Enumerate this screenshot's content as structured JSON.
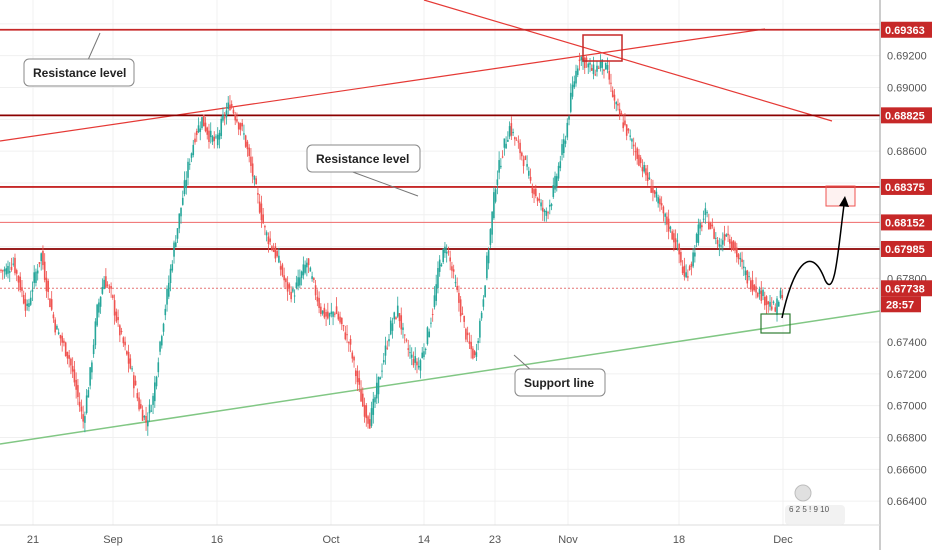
{
  "chart_data": {
    "type": "candlestick",
    "price_axis": {
      "range": [
        0.6625,
        0.6955
      ],
      "ticks": [
        "0.69200",
        "0.69000",
        "0.68600",
        "0.68200",
        "0.67800",
        "0.67400",
        "0.67200",
        "0.67000",
        "0.66800",
        "0.66600",
        "0.66400"
      ],
      "labels_max": "0.69363"
    },
    "time_axis": {
      "ticks": [
        "21",
        "Sep",
        "16",
        "Oct",
        "14",
        "23",
        "Nov",
        "18",
        "Dec"
      ]
    },
    "horizontal_levels": [
      {
        "value": 0.69363,
        "label": "0.69363",
        "color": "#c62828"
      },
      {
        "value": 0.68825,
        "label": "0.68825",
        "color": "#8b0000"
      },
      {
        "value": 0.68375,
        "label": "0.68375",
        "color": "#c62828"
      },
      {
        "value": 0.68152,
        "label": "0.68152",
        "color": "#ef6a6a",
        "thin": true
      },
      {
        "value": 0.67985,
        "label": "0.67985",
        "color": "#8b0000"
      },
      {
        "value": 0.67738,
        "label": "0.67738",
        "color": "#e57373",
        "dotted": true
      }
    ],
    "countdown": "28:57",
    "annotations": [
      {
        "text": "Resistance level",
        "kind": "callout"
      },
      {
        "text": "Resistance level",
        "kind": "callout"
      },
      {
        "text": "Support line",
        "kind": "callout"
      }
    ],
    "candles": [
      0.6785,
      0.679,
      0.6775,
      0.676,
      0.678,
      0.6795,
      0.677,
      0.675,
      0.674,
      0.673,
      0.671,
      0.669,
      0.672,
      0.676,
      0.678,
      0.677,
      0.675,
      0.6735,
      0.672,
      0.67,
      0.669,
      0.6705,
      0.674,
      0.677,
      0.68,
      0.6825,
      0.685,
      0.687,
      0.688,
      0.687,
      0.6865,
      0.688,
      0.689,
      0.688,
      0.687,
      0.685,
      0.683,
      0.681,
      0.68,
      0.679,
      0.6775,
      0.677,
      0.678,
      0.679,
      0.6775,
      0.676,
      0.6755,
      0.676,
      0.675,
      0.674,
      0.672,
      0.67,
      0.669,
      0.671,
      0.673,
      0.675,
      0.676,
      0.674,
      0.673,
      0.6725,
      0.674,
      0.676,
      0.679,
      0.68,
      0.678,
      0.676,
      0.674,
      0.673,
      0.676,
      0.68,
      0.684,
      0.686,
      0.6875,
      0.6865,
      0.6855,
      0.684,
      0.683,
      0.682,
      0.683,
      0.685,
      0.687,
      0.69,
      0.692,
      0.6915,
      0.691,
      0.6915,
      0.691,
      0.689,
      0.688,
      0.687,
      0.686,
      0.685,
      0.684,
      0.683,
      0.682,
      0.681,
      0.68,
      0.678,
      0.679,
      0.681,
      0.682,
      0.681,
      0.68,
      0.681,
      0.68,
      0.679,
      0.678,
      0.6775,
      0.677,
      0.6765,
      0.676,
      0.6772
    ]
  }
}
